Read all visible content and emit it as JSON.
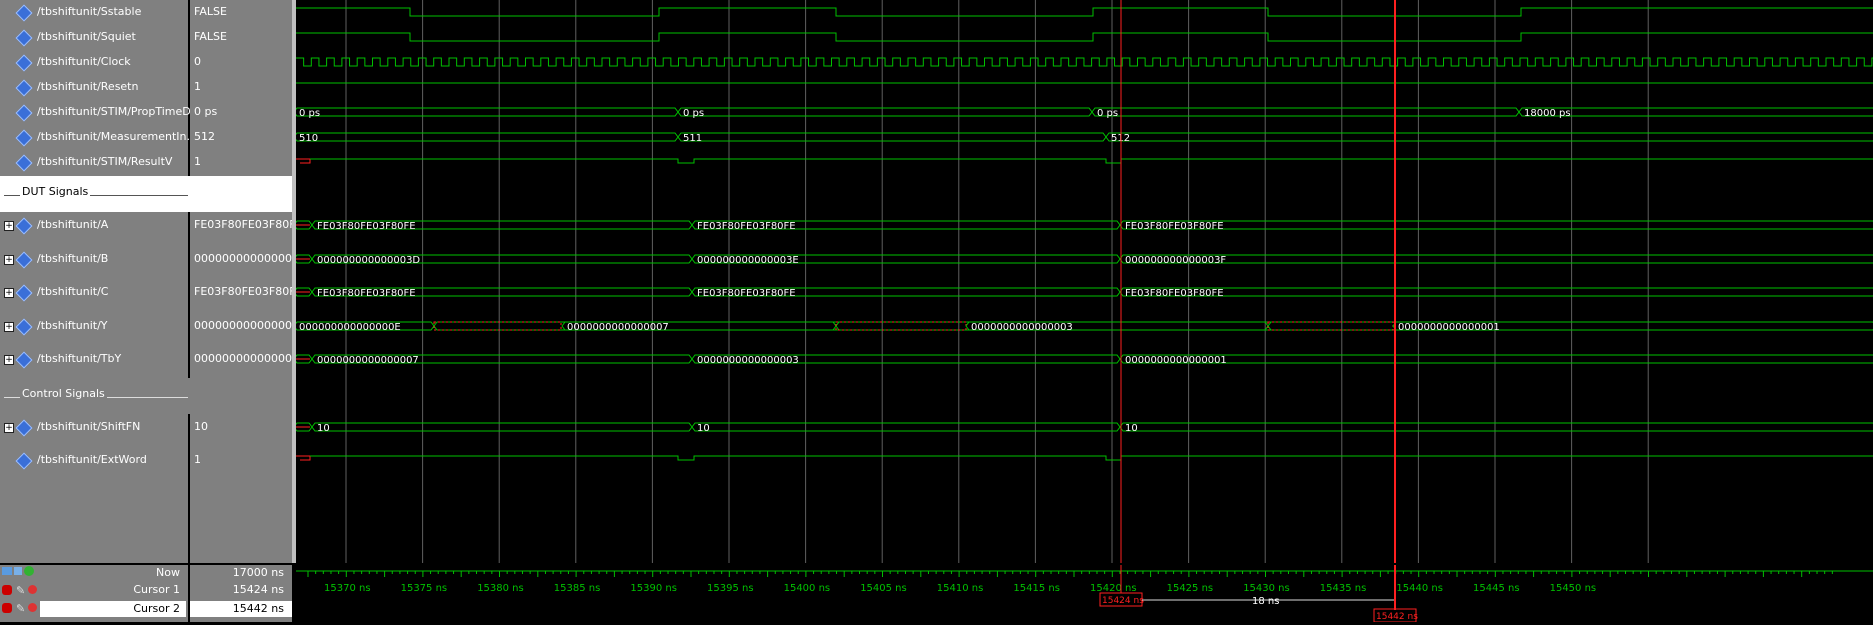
{
  "signals": [
    {
      "name": "/tbshiftunit/Sstable",
      "value": "FALSE",
      "expand": false
    },
    {
      "name": "/tbshiftunit/Squiet",
      "value": "FALSE",
      "expand": false
    },
    {
      "name": "/tbshiftunit/Clock",
      "value": "0",
      "expand": false
    },
    {
      "name": "/tbshiftunit/Resetn",
      "value": "1",
      "expand": false
    },
    {
      "name": "/tbshiftunit/STIM/PropTimeD...",
      "value": "0 ps",
      "expand": false
    },
    {
      "name": "/tbshiftunit/MeasurementIn...",
      "value": "512",
      "expand": false
    },
    {
      "name": "/tbshiftunit/STIM/ResultV",
      "value": "1",
      "expand": false
    },
    {
      "name": "/tbshiftunit/A",
      "value": "FE03F80FE03F80FE",
      "expand": true
    },
    {
      "name": "/tbshiftunit/B",
      "value": "000000000000003F",
      "expand": true
    },
    {
      "name": "/tbshiftunit/C",
      "value": "FE03F80FE03F80FE",
      "expand": true
    },
    {
      "name": "/tbshiftunit/Y",
      "value": "0000000000000001",
      "expand": true
    },
    {
      "name": "/tbshiftunit/TbY",
      "value": "0000000000000001",
      "expand": true
    },
    {
      "name": "/tbshiftunit/ShiftFN",
      "value": "10",
      "expand": true
    },
    {
      "name": "/tbshiftunit/ExtWord",
      "value": "1",
      "expand": false
    }
  ],
  "groups": {
    "dut": "DUT Signals",
    "control": "Control Signals"
  },
  "bus_values": {
    "prop": [
      "0 ps",
      "0 ps",
      "0 ps",
      "18000 ps"
    ],
    "meas": [
      "510",
      "511",
      "512"
    ],
    "a": [
      "FE03F80FE03F80FE",
      "FE03F80FE03F80FE",
      "FE03F80FE03F80FE"
    ],
    "b": [
      "000000000000003D",
      "000000000000003E",
      "000000000000003F"
    ],
    "c": [
      "FE03F80FE03F80FE",
      "FE03F80FE03F80FE",
      "FE03F80FE03F80FE"
    ],
    "y": [
      "000000000000000E",
      "0000000000000007",
      "0000000000000003",
      "0000000000000001"
    ],
    "tby": [
      "0000000000000007",
      "0000000000000003",
      "0000000000000001"
    ],
    "shiftfn": [
      "10",
      "10",
      "10"
    ]
  },
  "timeline": {
    "ticks": [
      "15370 ns",
      "15375 ns",
      "15380 ns",
      "15385 ns",
      "15390 ns",
      "15395 ns",
      "15400 ns",
      "15405 ns",
      "15410 ns",
      "15415 ns",
      "15420 ns",
      "15425 ns",
      "15430 ns",
      "15435 ns",
      "15440 ns",
      "15445 ns",
      "15450 ns"
    ],
    "cursor1_label": "15424 ns",
    "cursor2_label": "15442 ns",
    "delta_label": "18 ns"
  },
  "footer": {
    "now_label": "Now",
    "now_value": "17000 ns",
    "cursor1_name": "Cursor 1",
    "cursor1_value": "15424 ns",
    "cursor2_name": "Cursor 2",
    "cursor2_value": "15442 ns"
  },
  "colors": {
    "wave": "#00c000",
    "cursor": "#ff2020",
    "grid": "#606060",
    "panel": "#808080"
  }
}
